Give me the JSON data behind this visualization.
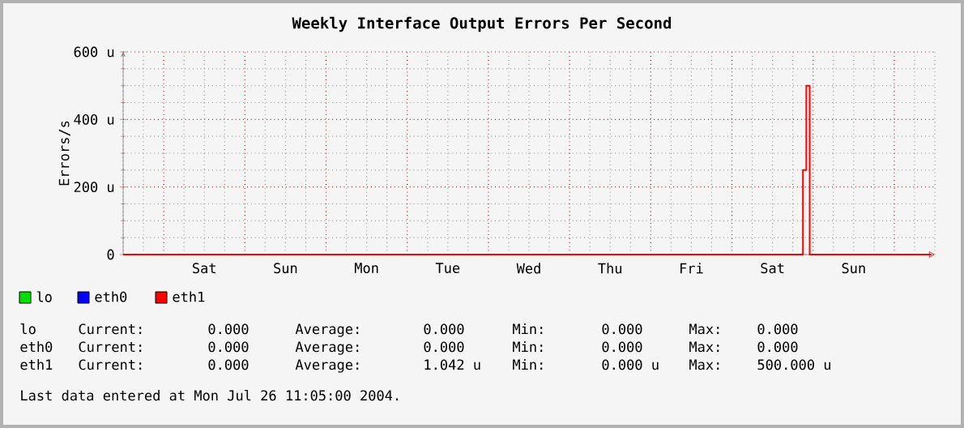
{
  "chart_data": {
    "type": "step",
    "title": "Weekly Interface Output Errors Per Second",
    "ylabel": "Errors/s",
    "categories": [
      null,
      null,
      null,
      null,
      null,
      null,
      null,
      null,
      null,
      null,
      null,
      null,
      null,
      null,
      null,
      null,
      null,
      null,
      null,
      null,
      null,
      null,
      null,
      null,
      "Sat",
      null,
      null,
      null,
      null,
      null,
      null,
      null,
      null,
      null,
      null,
      null,
      null,
      null,
      null,
      null,
      null,
      null,
      null,
      null,
      null,
      null,
      null,
      null,
      "Sun",
      null,
      null,
      null,
      null,
      null,
      null,
      null,
      null,
      null,
      null,
      null,
      null,
      null,
      null,
      null,
      null,
      null,
      null,
      null,
      null,
      null,
      null,
      null,
      "Mon",
      null,
      null,
      null,
      null,
      null,
      null,
      null,
      null,
      null,
      null,
      null,
      null,
      null,
      null,
      null,
      null,
      null,
      null,
      null,
      null,
      null,
      null,
      null,
      "Tue",
      null,
      null,
      null,
      null,
      null,
      null,
      null,
      null,
      null,
      null,
      null,
      null,
      null,
      null,
      null,
      null,
      null,
      null,
      null,
      null,
      null,
      null,
      null,
      "Wed",
      null,
      null,
      null,
      null,
      null,
      null,
      null,
      null,
      null,
      null,
      null,
      null,
      null,
      null,
      null,
      null,
      null,
      null,
      null,
      null,
      null,
      null,
      null,
      "Thu",
      null,
      null,
      null,
      null,
      null,
      null,
      null,
      null,
      null,
      null,
      null,
      null,
      null,
      null,
      null,
      null,
      null,
      null,
      null,
      null,
      null,
      null,
      null,
      "Fri",
      null,
      null,
      null,
      null,
      null,
      null,
      null,
      null,
      null,
      null,
      null,
      null,
      null,
      null,
      null,
      null,
      null,
      null,
      null,
      null,
      null,
      null,
      null,
      "Sat",
      null,
      null,
      null,
      null,
      null,
      null,
      null,
      null,
      null,
      null,
      null,
      null,
      null,
      null,
      null,
      null,
      null,
      null,
      null,
      null,
      null,
      null,
      null,
      "Sun",
      null,
      null,
      null,
      null,
      null,
      null,
      null,
      null,
      null,
      null,
      null,
      null,
      null,
      null,
      null,
      null,
      null,
      null,
      null,
      null,
      null,
      null,
      null
    ],
    "ylim": [
      0,
      600
    ],
    "yticks": [
      0,
      {
        "value": 200,
        "label": "200 u"
      },
      {
        "value": 400,
        "label": "400 u"
      },
      {
        "value": 600,
        "label": "600 u"
      }
    ],
    "grid": true,
    "legend": "bottom left",
    "series": [
      {
        "name": "lo",
        "color": "#00e000",
        "values": [
          null,
          null,
          null,
          null,
          null,
          null,
          null,
          null,
          null,
          null,
          null,
          null,
          null,
          null,
          null,
          null,
          null,
          null,
          null,
          null,
          null,
          null,
          null,
          null,
          null,
          null,
          null,
          null,
          null,
          null,
          null,
          null,
          null,
          null,
          null,
          null,
          null,
          null,
          null,
          null,
          null,
          null,
          null,
          null,
          null,
          null,
          null,
          null,
          null,
          null,
          null,
          null,
          null,
          null,
          null,
          null,
          null,
          null,
          null,
          null,
          null,
          null,
          null,
          null,
          null,
          null,
          null,
          null,
          null,
          null,
          null,
          null,
          null,
          null,
          null,
          null,
          null,
          null,
          null,
          null,
          null,
          null,
          null,
          null,
          null,
          null,
          null,
          null,
          null,
          null,
          null,
          null,
          null,
          null,
          null,
          null,
          null,
          null,
          null,
          null,
          null,
          null,
          null,
          null,
          null,
          null,
          null,
          null,
          null,
          null,
          null,
          null,
          null,
          null,
          null,
          null,
          null,
          null,
          null,
          null,
          null,
          null,
          null,
          null,
          null,
          null,
          null,
          null,
          null,
          null,
          null,
          null,
          null,
          null,
          null,
          null,
          null,
          null,
          null,
          null,
          null,
          null,
          null,
          null,
          null,
          null,
          null,
          null,
          null,
          null,
          null,
          null,
          null,
          null,
          null,
          null,
          null,
          null,
          null,
          null,
          null,
          null,
          null,
          null,
          null,
          null,
          null,
          null,
          null,
          null,
          null,
          null,
          null,
          null,
          null,
          null,
          null,
          null,
          null,
          null,
          null,
          null,
          null,
          null,
          null,
          null,
          null,
          null,
          null,
          null,
          null,
          null,
          null,
          null,
          null,
          null,
          null,
          null,
          null,
          null,
          null,
          null,
          null,
          null,
          null,
          null,
          null,
          null,
          null,
          null,
          null,
          null,
          null,
          null,
          null,
          null,
          null,
          null,
          null,
          null,
          null,
          null,
          null,
          null,
          null,
          null,
          null,
          null,
          null,
          null,
          null,
          null,
          null,
          null,
          null,
          null,
          null,
          null,
          null,
          null
        ]
      },
      {
        "name": "eth0",
        "color": "#0000ff",
        "values": [
          null,
          null,
          null,
          null,
          null,
          null,
          null,
          null,
          null,
          null,
          null,
          null,
          null,
          null,
          null,
          null,
          null,
          null,
          null,
          null,
          null,
          null,
          null,
          null,
          null,
          null,
          null,
          null,
          null,
          null,
          null,
          null,
          null,
          null,
          null,
          null,
          null,
          null,
          null,
          null,
          null,
          null,
          null,
          null,
          null,
          null,
          null,
          null,
          null,
          null,
          null,
          null,
          null,
          null,
          null,
          null,
          null,
          null,
          null,
          null,
          null,
          null,
          null,
          null,
          null,
          null,
          null,
          null,
          null,
          null,
          null,
          null,
          null,
          null,
          null,
          null,
          null,
          null,
          null,
          null,
          null,
          null,
          null,
          null,
          null,
          null,
          null,
          null,
          null,
          null,
          null,
          null,
          null,
          null,
          null,
          null,
          null,
          null,
          null,
          null,
          null,
          null,
          null,
          null,
          null,
          null,
          null,
          null,
          null,
          null,
          null,
          null,
          null,
          null,
          null,
          null,
          null,
          null,
          null,
          null,
          null,
          null,
          null,
          null,
          null,
          null,
          null,
          null,
          null,
          null,
          null,
          null,
          null,
          null,
          null,
          null,
          null,
          null,
          null,
          null,
          null,
          null,
          null,
          null,
          null,
          null,
          null,
          null,
          null,
          null,
          null,
          null,
          null,
          null,
          null,
          null,
          null,
          null,
          null,
          null,
          null,
          null,
          null,
          null,
          null,
          null,
          null,
          null,
          null,
          null,
          null,
          null,
          null,
          null,
          null,
          null,
          null,
          null,
          null,
          null,
          null,
          null,
          null,
          null,
          null,
          null,
          null,
          null,
          null,
          null,
          null,
          null,
          null,
          null,
          null,
          null,
          null,
          null,
          null,
          null,
          null,
          null,
          null,
          null,
          null,
          null,
          null,
          null,
          null,
          null,
          null,
          null,
          null,
          null,
          null,
          null,
          null,
          null,
          null,
          null,
          null,
          null,
          null,
          null,
          null,
          null,
          null,
          null,
          null,
          null,
          null,
          null,
          null,
          null,
          null,
          null,
          null,
          null,
          null,
          null
        ]
      },
      {
        "name": "eth1",
        "color": "#ff0000",
        "values": [
          0,
          0,
          0,
          0,
          0,
          0,
          0,
          0,
          0,
          0,
          0,
          0,
          0,
          0,
          0,
          0,
          0,
          0,
          0,
          0,
          0,
          0,
          0,
          0,
          0,
          0,
          0,
          0,
          0,
          0,
          0,
          0,
          0,
          0,
          0,
          0,
          0,
          0,
          0,
          0,
          0,
          0,
          0,
          0,
          0,
          0,
          0,
          0,
          0,
          0,
          0,
          0,
          0,
          0,
          0,
          0,
          0,
          0,
          0,
          0,
          0,
          0,
          0,
          0,
          0,
          0,
          0,
          0,
          0,
          0,
          0,
          0,
          0,
          0,
          0,
          0,
          0,
          0,
          0,
          0,
          0,
          0,
          0,
          0,
          0,
          0,
          0,
          0,
          0,
          0,
          0,
          0,
          0,
          0,
          0,
          0,
          0,
          0,
          0,
          0,
          0,
          0,
          0,
          0,
          0,
          0,
          0,
          0,
          0,
          0,
          0,
          0,
          0,
          0,
          0,
          0,
          0,
          0,
          0,
          0,
          0,
          0,
          0,
          0,
          0,
          0,
          0,
          0,
          0,
          0,
          0,
          0,
          0,
          0,
          0,
          0,
          0,
          0,
          0,
          0,
          0,
          0,
          0,
          0,
          0,
          0,
          0,
          0,
          0,
          0,
          0,
          0,
          0,
          0,
          0,
          0,
          0,
          0,
          0,
          0,
          0,
          0,
          0,
          0,
          0,
          0,
          0,
          0,
          0,
          0,
          0,
          0,
          0,
          0,
          0,
          0,
          0,
          0,
          0,
          0,
          0,
          0,
          0,
          0,
          0,
          0,
          0,
          0,
          0,
          0,
          0,
          0,
          0,
          0,
          0,
          0,
          0,
          0,
          0,
          0,
          0,
          250,
          500,
          0,
          0,
          0,
          0,
          0,
          0,
          0,
          0,
          0,
          0,
          0,
          0,
          0,
          0,
          0,
          0,
          0,
          0,
          0,
          0,
          0,
          0,
          0,
          0,
          0,
          0,
          0,
          0,
          0,
          0,
          0,
          0,
          0,
          0,
          0,
          0,
          0
        ]
      }
    ],
    "annotations": [
      "lo",
      "Current:",
      "0.000",
      "Average:",
      "0.000",
      "Min:",
      "0.000",
      "Max:",
      "0.000",
      "eth0",
      "Current:",
      "0.000",
      "Average:",
      "0.000",
      "Min:",
      "0.000",
      "Max:",
      "0.000",
      "eth1",
      "Current:",
      "0.000",
      "Average:",
      "1.042 u",
      "Min:",
      "0.000 u",
      "Max:",
      "500.000 u",
      "Last data entered at Mon Jul 26 11:05:00 2004."
    ]
  }
}
